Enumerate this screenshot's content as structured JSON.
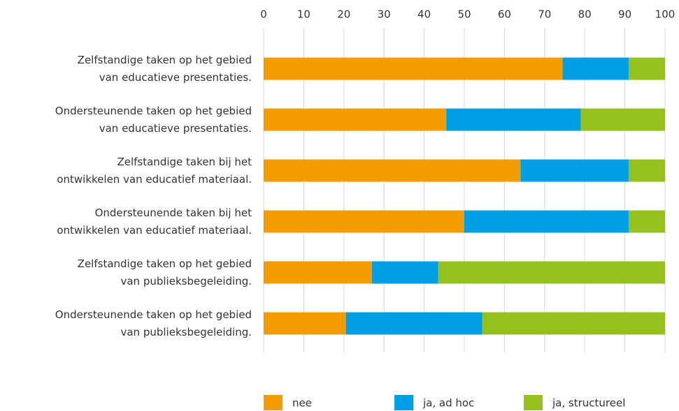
{
  "chart_data": {
    "type": "stacked_bar_horizontal",
    "categories": [
      [
        "Zelfstandige taken op het gebied",
        "van educatieve presentaties."
      ],
      [
        "Ondersteunende taken op het gebied",
        "van educatieve presentaties."
      ],
      [
        "Zelfstandige taken bij het",
        "ontwikkelen van educatief materiaal."
      ],
      [
        "Ondersteunende taken bij het",
        "ontwikkelen van educatief materiaal."
      ],
      [
        "Zelfstandige taken op het gebied",
        "van publieksbegeleiding."
      ],
      [
        "Ondersteunende taken op het gebied",
        "van publieksbegeleiding."
      ]
    ],
    "series": [
      {
        "name": "nee",
        "color": "#f39c00",
        "values": [
          74.5,
          45.5,
          64,
          50,
          27,
          20.5
        ]
      },
      {
        "name": "ja, ad hoc",
        "color": "#009fe3",
        "values": [
          16.5,
          33.5,
          27,
          41,
          16.5,
          34
        ]
      },
      {
        "name": "ja, structureel",
        "color": "#95c11f",
        "values": [
          9,
          21,
          9,
          9,
          56.5,
          45.5
        ]
      }
    ],
    "xlim": [
      0,
      100
    ],
    "xticks": [
      0,
      10,
      20,
      30,
      40,
      50,
      60,
      70,
      80,
      90,
      100
    ],
    "grid": true,
    "legend": "bottom"
  }
}
